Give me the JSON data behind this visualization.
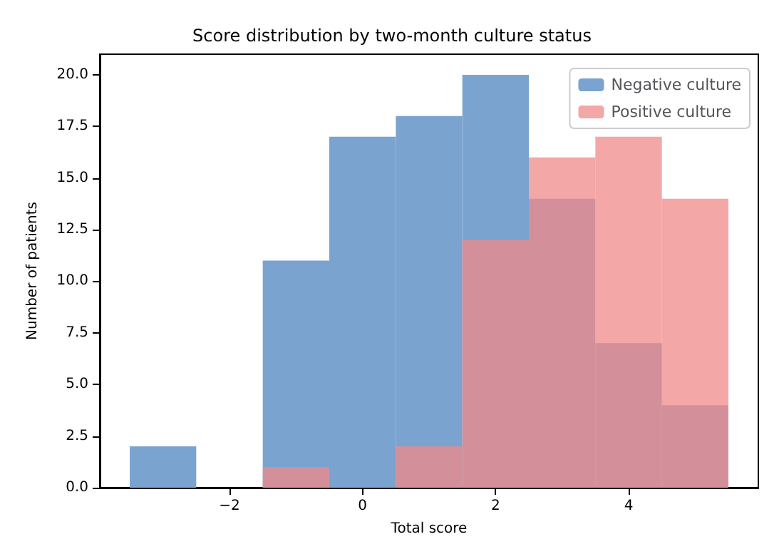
{
  "chart_data": {
    "type": "histogram",
    "title": "Score distribution by two-month culture status",
    "xlabel": "Total score",
    "ylabel": "Number of patients",
    "bins": [
      -3.5,
      -2.5,
      -1.5,
      -0.5,
      0.5,
      1.5,
      2.5,
      3.5,
      4.5,
      5.5
    ],
    "series": [
      {
        "name": "Negative culture",
        "color": "#7ba3d0",
        "values": [
          2,
          0,
          11,
          17,
          18,
          20,
          14,
          7,
          4
        ]
      },
      {
        "name": "Positive culture",
        "color": "#f08a8a",
        "values": [
          0,
          0,
          1,
          0,
          2,
          12,
          16,
          17,
          14
        ]
      }
    ],
    "xlim": [
      -3.95,
      5.95
    ],
    "xticks": [
      {
        "value": -2,
        "label": "−2"
      },
      0,
      2,
      4
    ],
    "ylim": [
      0,
      21
    ],
    "yticks": [
      {
        "value": 0,
        "label": "0.0"
      },
      {
        "value": 2.5,
        "label": "2.5"
      },
      {
        "value": 5,
        "label": "5.0"
      },
      {
        "value": 7.5,
        "label": "7.5"
      },
      {
        "value": 10,
        "label": "10.0"
      },
      {
        "value": 12.5,
        "label": "12.5"
      },
      {
        "value": 15,
        "label": "15.0"
      },
      {
        "value": 17.5,
        "label": "17.5"
      },
      {
        "value": 20,
        "label": "20.0"
      }
    ],
    "grid": false,
    "legend": "top right"
  }
}
